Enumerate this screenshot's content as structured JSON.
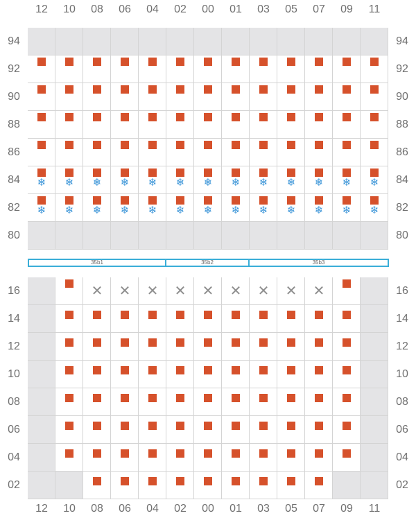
{
  "columns": [
    "12",
    "10",
    "08",
    "06",
    "04",
    "02",
    "00",
    "01",
    "03",
    "05",
    "07",
    "09",
    "11"
  ],
  "top_rows": [
    "94",
    "92",
    "90",
    "88",
    "86",
    "84",
    "82",
    "80"
  ],
  "bottom_rows": [
    "16",
    "14",
    "12",
    "10",
    "08",
    "06",
    "04",
    "02"
  ],
  "zones": [
    {
      "label": "35b1",
      "start_col": 0,
      "span": 5
    },
    {
      "label": "35b2",
      "start_col": 5,
      "span": 3
    },
    {
      "label": "35b3",
      "start_col": 8,
      "span": 5
    }
  ],
  "top_block": {
    "grey_rows": [
      "94",
      "80"
    ],
    "occupied_rows": [
      "92",
      "90",
      "88",
      "86",
      "84",
      "82"
    ],
    "reefer_rows": [
      "84",
      "82"
    ]
  },
  "bottom_block": {
    "grey_cells": [
      {
        "row": "16",
        "cols": [
          "12",
          "11"
        ]
      },
      {
        "row": "14",
        "cols": [
          "12",
          "11"
        ]
      },
      {
        "row": "12",
        "cols": [
          "12",
          "11"
        ]
      },
      {
        "row": "10",
        "cols": [
          "12",
          "11"
        ]
      },
      {
        "row": "08",
        "cols": [
          "12",
          "11"
        ]
      },
      {
        "row": "06",
        "cols": [
          "12",
          "11"
        ]
      },
      {
        "row": "04",
        "cols": [
          "12",
          "11"
        ]
      },
      {
        "row": "02",
        "cols": [
          "12",
          "10",
          "09",
          "11"
        ]
      }
    ],
    "x_cells": [
      {
        "row": "16",
        "cols": [
          "08",
          "06",
          "04",
          "02",
          "00",
          "01",
          "03",
          "05",
          "07"
        ]
      }
    ],
    "box_cells": [
      {
        "row": "16",
        "cols": [
          "10",
          "09"
        ]
      },
      {
        "row": "14",
        "cols": [
          "10",
          "08",
          "06",
          "04",
          "02",
          "00",
          "01",
          "03",
          "05",
          "07",
          "09"
        ]
      },
      {
        "row": "12",
        "cols": [
          "10",
          "08",
          "06",
          "04",
          "02",
          "00",
          "01",
          "03",
          "05",
          "07",
          "09"
        ]
      },
      {
        "row": "10",
        "cols": [
          "10",
          "08",
          "06",
          "04",
          "02",
          "00",
          "01",
          "03",
          "05",
          "07",
          "09"
        ]
      },
      {
        "row": "08",
        "cols": [
          "10",
          "08",
          "06",
          "04",
          "02",
          "00",
          "01",
          "03",
          "05",
          "07",
          "09"
        ]
      },
      {
        "row": "06",
        "cols": [
          "10",
          "08",
          "06",
          "04",
          "02",
          "00",
          "01",
          "03",
          "05",
          "07",
          "09"
        ]
      },
      {
        "row": "04",
        "cols": [
          "10",
          "08",
          "06",
          "04",
          "02",
          "00",
          "01",
          "03",
          "05",
          "07",
          "09"
        ]
      },
      {
        "row": "02",
        "cols": [
          "08",
          "06",
          "04",
          "02",
          "00",
          "01",
          "03",
          "05",
          "07"
        ]
      }
    ]
  },
  "colors": {
    "container": "#d6512b",
    "reefer": "#3b95d8",
    "empty_mark": "#8e8e8e",
    "unavailable": "#e4e4e6",
    "zone_border": "#3aaed8"
  },
  "icons": {
    "reefer": "snowflake-icon",
    "unavailable": "x-mark-icon"
  }
}
